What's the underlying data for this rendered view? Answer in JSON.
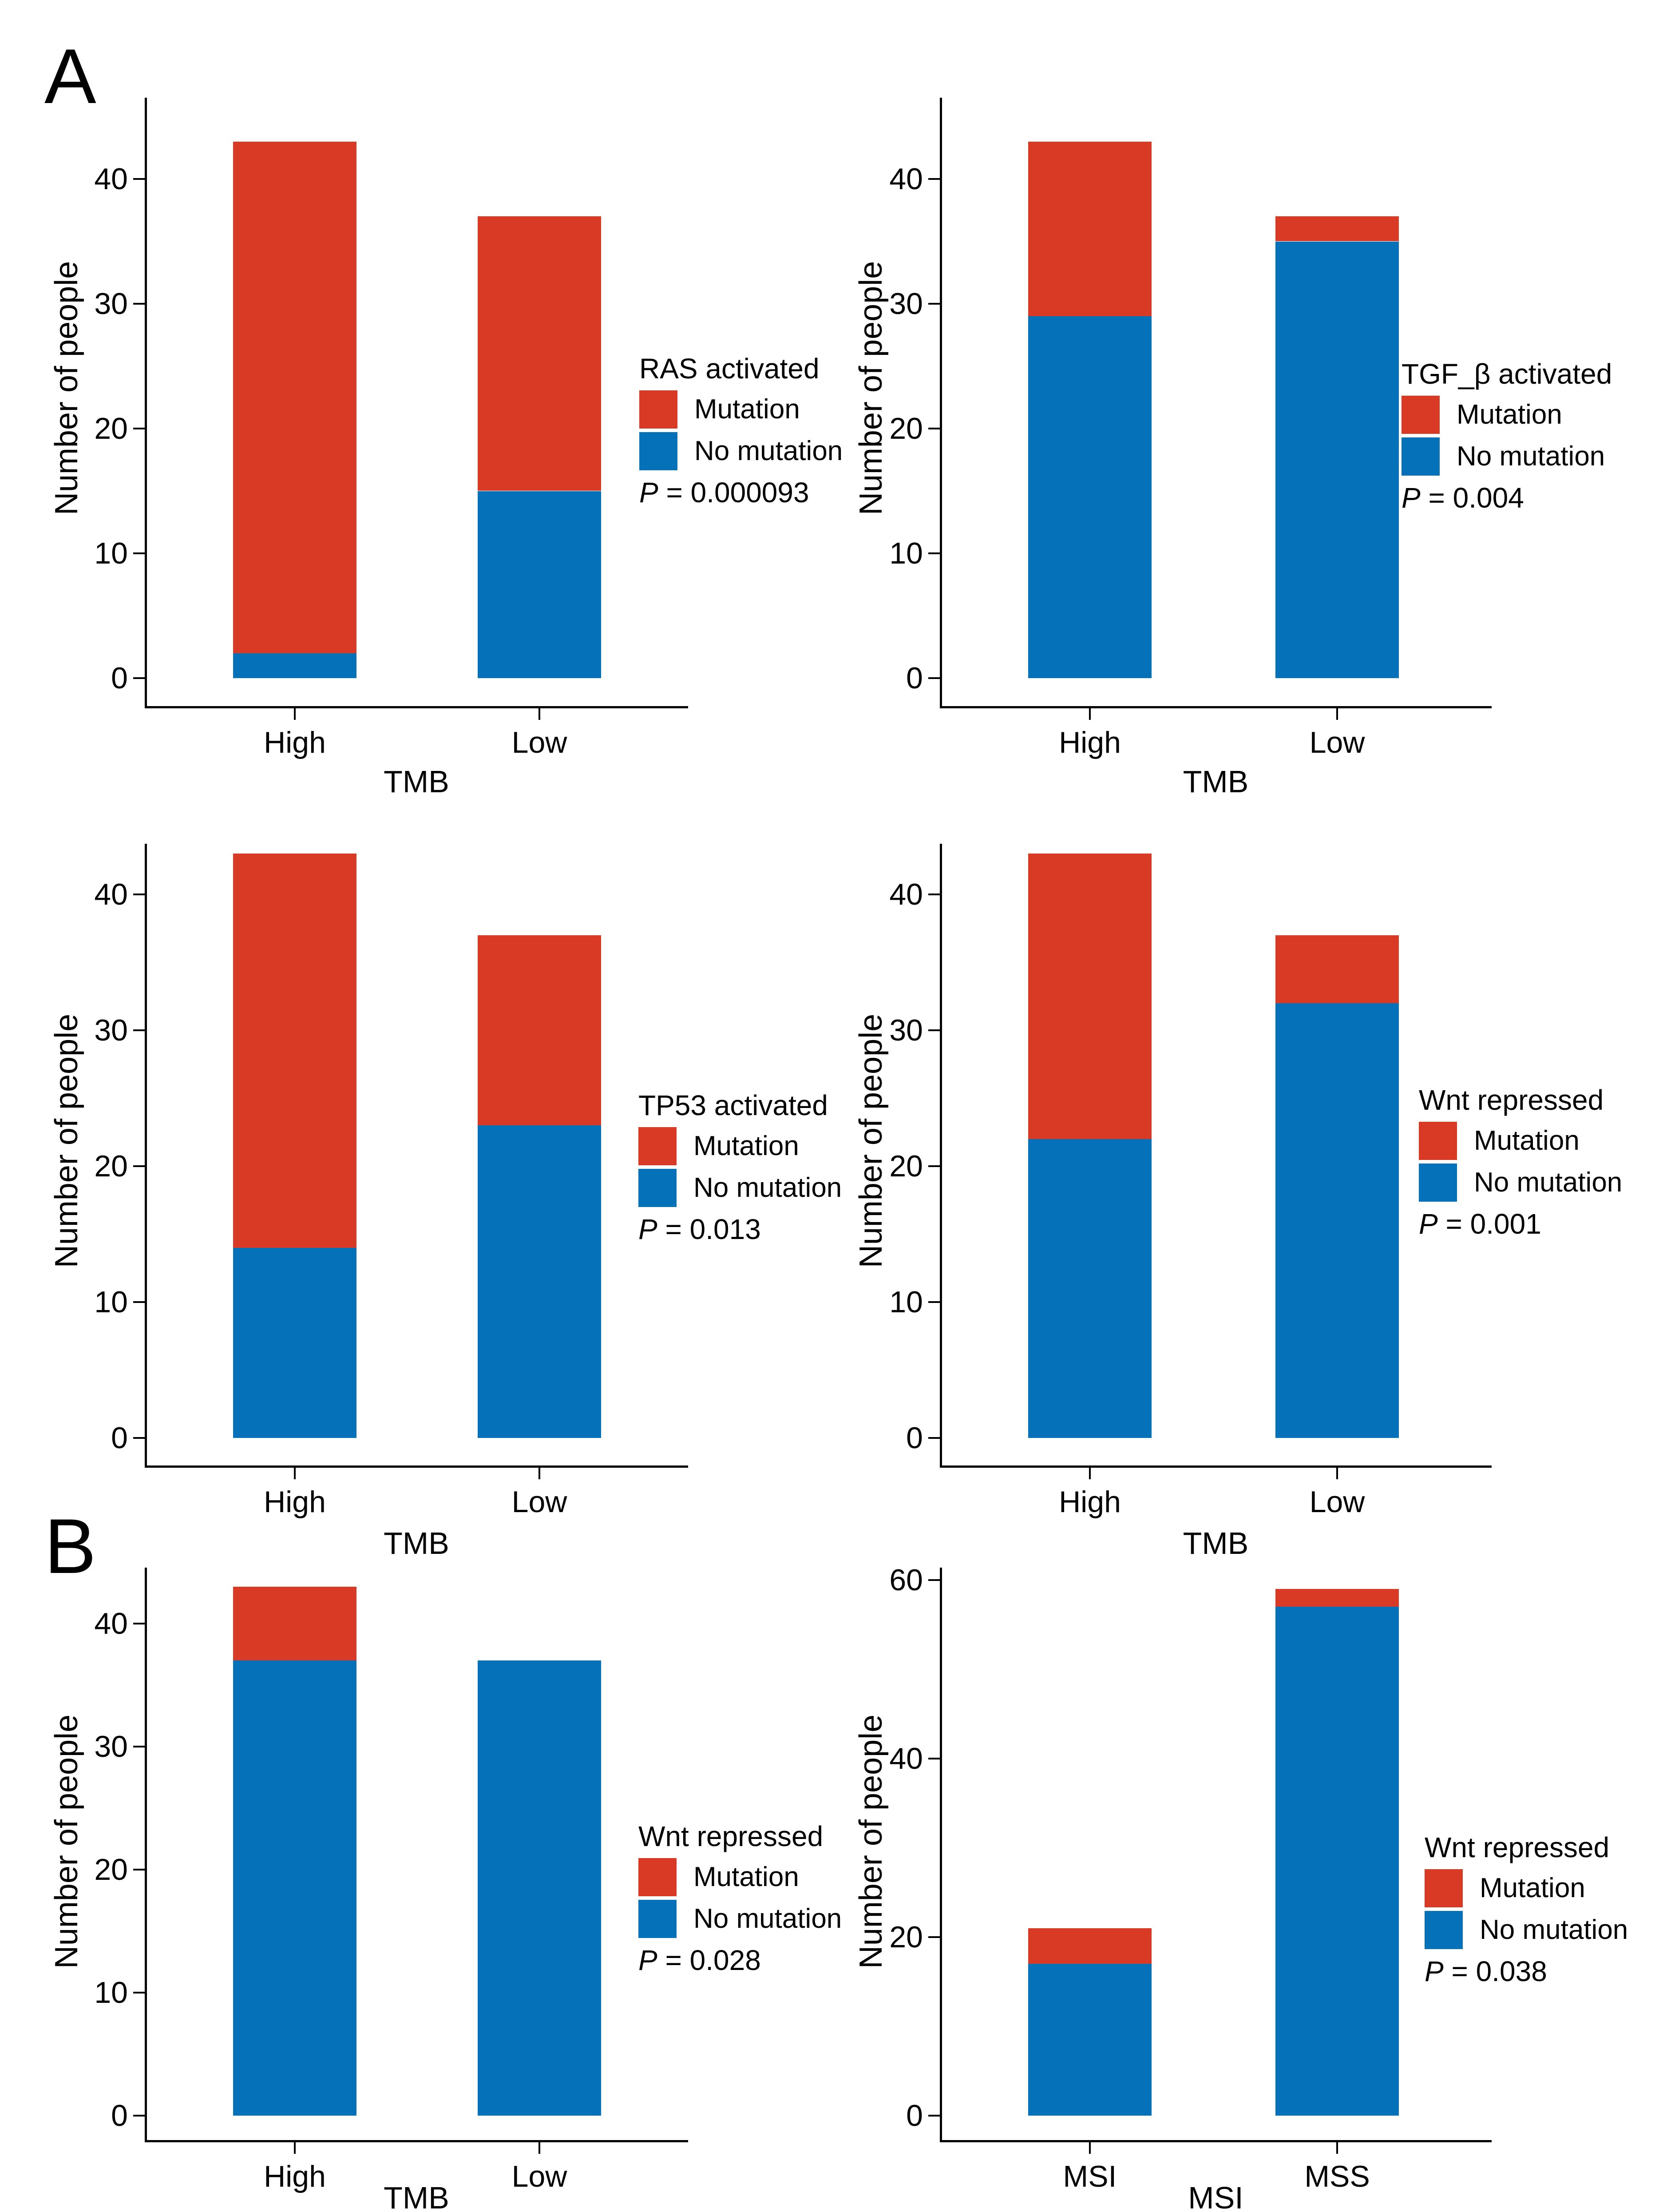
{
  "figure": {
    "panel_a_label": "A",
    "panel_b_label": "B"
  },
  "colors": {
    "mutation": "#d93a26",
    "no_mutation": "#0571b8",
    "axis": "#000000",
    "text": "#000000",
    "background": "#ffffff"
  },
  "chart_data": [
    {
      "type": "bar",
      "stacked": true,
      "panel": "A",
      "legend_title": "RAS activated",
      "p_label": "P",
      "p_rest": " = 0.000093",
      "xlabel": "TMB",
      "ylabel": "Number of people",
      "categories": [
        "High",
        "Low"
      ],
      "series": [
        {
          "name": "Mutation",
          "color": "mutation",
          "values": [
            41,
            22
          ]
        },
        {
          "name": "No mutation",
          "color": "no_mutation",
          "values": [
            2,
            15
          ]
        }
      ],
      "totals": [
        43,
        37
      ],
      "yticks": [
        0,
        10,
        20,
        30,
        40
      ],
      "ylim": [
        0,
        45
      ],
      "grid": false,
      "legend_position": {
        "x": 1440,
        "y": 645
      }
    },
    {
      "type": "bar",
      "stacked": true,
      "panel": "A",
      "legend_title": "TGF_β activated",
      "p_label": "P",
      "p_rest": " = 0.004",
      "xlabel": "TMB",
      "ylabel": "Number of people",
      "categories": [
        "High",
        "Low"
      ],
      "series": [
        {
          "name": "Mutation",
          "color": "mutation",
          "values": [
            14,
            2
          ]
        },
        {
          "name": "No mutation",
          "color": "no_mutation",
          "values": [
            29,
            35
          ]
        }
      ],
      "totals": [
        43,
        37
      ],
      "yticks": [
        0,
        10,
        20,
        30,
        40
      ],
      "ylim": [
        0,
        45
      ],
      "grid": false,
      "legend_position": {
        "x": 1293,
        "y": 657
      }
    },
    {
      "type": "bar",
      "stacked": true,
      "panel": "A",
      "legend_title": "TP53 activated",
      "p_label": "P",
      "p_rest": " = 0.013",
      "xlabel": "TMB",
      "ylabel": "Number of people",
      "categories": [
        "High",
        "Low"
      ],
      "series": [
        {
          "name": "Mutation",
          "color": "mutation",
          "values": [
            29,
            14
          ]
        },
        {
          "name": "No mutation",
          "color": "no_mutation",
          "values": [
            14,
            23
          ]
        }
      ],
      "totals": [
        43,
        37
      ],
      "yticks": [
        0,
        10,
        20,
        30,
        40
      ],
      "ylim": [
        0,
        45
      ],
      "grid": false,
      "legend_position": {
        "x": 1438,
        "y": 604
      }
    },
    {
      "type": "bar",
      "stacked": true,
      "panel": "A",
      "legend_title": "Wnt repressed",
      "p_label": "P",
      "p_rest": " = 0.001",
      "xlabel": "TMB",
      "ylabel": "Number of people",
      "categories": [
        "High",
        "Low"
      ],
      "series": [
        {
          "name": "Mutation",
          "color": "mutation",
          "values": [
            21,
            5
          ]
        },
        {
          "name": "No mutation",
          "color": "no_mutation",
          "values": [
            22,
            32
          ]
        }
      ],
      "totals": [
        43,
        37
      ],
      "yticks": [
        0,
        10,
        20,
        30,
        40
      ],
      "ylim": [
        0,
        45
      ],
      "grid": false,
      "legend_position": {
        "x": 1332,
        "y": 592
      }
    },
    {
      "type": "bar",
      "stacked": true,
      "panel": "B",
      "legend_title": "Wnt repressed",
      "p_label": "P",
      "p_rest": " = 0.028",
      "xlabel": "TMB",
      "ylabel": "Number of people",
      "categories": [
        "High",
        "Low"
      ],
      "series": [
        {
          "name": "Mutation",
          "color": "mutation",
          "values": [
            6,
            0
          ]
        },
        {
          "name": "No mutation",
          "color": "no_mutation",
          "values": [
            37,
            37
          ]
        }
      ],
      "totals": [
        43,
        37
      ],
      "yticks": [
        0,
        10,
        20,
        30,
        40
      ],
      "ylim": [
        0,
        45
      ],
      "grid": false,
      "legend_position": {
        "x": 1438,
        "y": 620
      }
    },
    {
      "type": "bar",
      "stacked": true,
      "panel": "B",
      "legend_title": "Wnt repressed",
      "p_label": "P",
      "p_rest": " = 0.038",
      "xlabel": "MSI",
      "ylabel": "Number of people",
      "categories": [
        "MSI",
        "MSS"
      ],
      "series": [
        {
          "name": "Mutation",
          "color": "mutation",
          "values": [
            4,
            2
          ]
        },
        {
          "name": "No mutation",
          "color": "no_mutation",
          "values": [
            17,
            57
          ]
        }
      ],
      "totals": [
        21,
        59
      ],
      "yticks": [
        0,
        20,
        40,
        60
      ],
      "ylim": [
        0,
        62
      ],
      "grid": false,
      "legend_position": {
        "x": 1345,
        "y": 645
      }
    }
  ]
}
